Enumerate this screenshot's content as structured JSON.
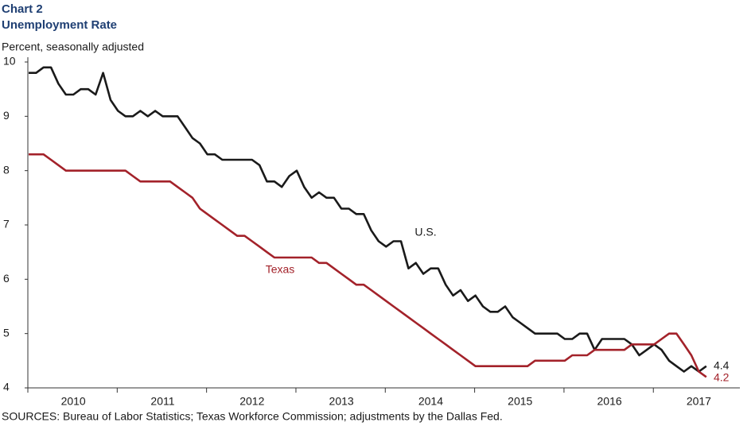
{
  "chart_data": {
    "type": "line",
    "title": "Chart 2",
    "subtitle": "Unemployment Rate",
    "y_label": "Percent, seasonally adjusted",
    "source": "SOURCES: Bureau of Labor Statistics; Texas Workforce Commission; adjustments by the Dallas Fed.",
    "categories": [
      null,
      null,
      null,
      null,
      null,
      null,
      "2010",
      null,
      null,
      null,
      null,
      null,
      null,
      null,
      null,
      null,
      null,
      null,
      "2011",
      null,
      null,
      null,
      null,
      null,
      null,
      null,
      null,
      null,
      null,
      null,
      "2012",
      null,
      null,
      null,
      null,
      null,
      null,
      null,
      null,
      null,
      null,
      null,
      "2013",
      null,
      null,
      null,
      null,
      null,
      null,
      null,
      null,
      null,
      null,
      null,
      "2014",
      null,
      null,
      null,
      null,
      null,
      null,
      null,
      null,
      null,
      null,
      null,
      "2015",
      null,
      null,
      null,
      null,
      null,
      null,
      null,
      null,
      null,
      null,
      null,
      "2016",
      null,
      null,
      null,
      null,
      null,
      null,
      null,
      null,
      null,
      null,
      null,
      "2017",
      null
    ],
    "series": [
      {
        "name": "U.S.",
        "color": "#1a1a1a",
        "values": [
          9.8,
          9.8,
          9.9,
          9.9,
          9.6,
          9.4,
          9.4,
          9.5,
          9.5,
          9.4,
          9.8,
          9.3,
          9.1,
          9.0,
          9.0,
          9.1,
          9.0,
          9.1,
          9.0,
          9.0,
          9.0,
          8.8,
          8.6,
          8.5,
          8.3,
          8.3,
          8.2,
          8.2,
          8.2,
          8.2,
          8.2,
          8.1,
          7.8,
          7.8,
          7.7,
          7.9,
          8.0,
          7.7,
          7.5,
          7.6,
          7.5,
          7.5,
          7.3,
          7.3,
          7.2,
          7.2,
          6.9,
          6.7,
          6.6,
          6.7,
          6.7,
          6.2,
          6.3,
          6.1,
          6.2,
          6.2,
          5.9,
          5.7,
          5.8,
          5.6,
          5.7,
          5.5,
          5.4,
          5.4,
          5.5,
          5.3,
          5.2,
          5.1,
          5.0,
          5.0,
          5.0,
          5.0,
          4.9,
          4.9,
          5.0,
          5.0,
          4.7,
          4.9,
          4.9,
          4.9,
          4.9,
          4.8,
          4.6,
          4.7,
          4.8,
          4.7,
          4.5,
          4.4,
          4.3,
          4.4,
          4.3,
          4.4
        ]
      },
      {
        "name": "Texas",
        "color": "#a3222a",
        "values": [
          8.3,
          8.3,
          8.3,
          8.2,
          8.1,
          8.0,
          8.0,
          8.0,
          8.0,
          8.0,
          8.0,
          8.0,
          8.0,
          8.0,
          7.9,
          7.8,
          7.8,
          7.8,
          7.8,
          7.8,
          7.7,
          7.6,
          7.5,
          7.3,
          7.2,
          7.1,
          7.0,
          6.9,
          6.8,
          6.8,
          6.7,
          6.6,
          6.5,
          6.4,
          6.4,
          6.4,
          6.4,
          6.4,
          6.4,
          6.3,
          6.3,
          6.2,
          6.1,
          6.0,
          5.9,
          5.9,
          5.8,
          5.7,
          5.6,
          5.5,
          5.4,
          5.3,
          5.2,
          5.1,
          5.0,
          4.9,
          4.8,
          4.7,
          4.6,
          4.5,
          4.4,
          4.4,
          4.4,
          4.4,
          4.4,
          4.4,
          4.4,
          4.4,
          4.5,
          4.5,
          4.5,
          4.5,
          4.5,
          4.6,
          4.6,
          4.6,
          4.7,
          4.7,
          4.7,
          4.7,
          4.7,
          4.8,
          4.8,
          4.8,
          4.8,
          4.9,
          5.0,
          5.0,
          4.8,
          4.6,
          4.3,
          4.2
        ]
      }
    ],
    "ylim": [
      4,
      10
    ],
    "yticks": [
      4,
      5,
      6,
      7,
      8,
      9,
      10
    ],
    "grid": false
  }
}
